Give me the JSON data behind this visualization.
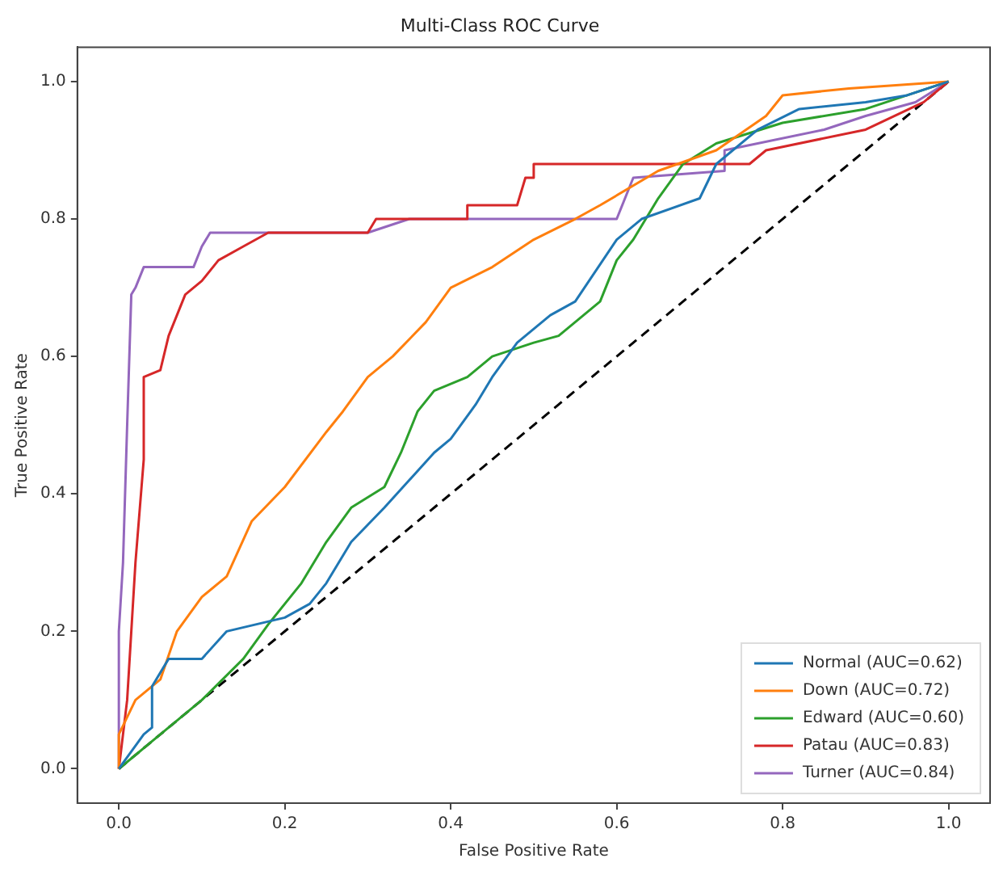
{
  "chart_data": {
    "type": "line",
    "title": "Multi-Class ROC Curve",
    "xlabel": "False Positive Rate",
    "ylabel": "True Positive Rate",
    "xlim": [
      -0.05,
      1.05
    ],
    "ylim": [
      -0.05,
      1.05
    ],
    "xticks": [
      {
        "value": 0,
        "label": "0.0"
      },
      {
        "value": 0.2,
        "label": "0.2"
      },
      {
        "value": 0.4,
        "label": "0.4"
      },
      {
        "value": 0.6,
        "label": "0.6"
      },
      {
        "value": 0.8,
        "label": "0.8"
      },
      {
        "value": 1,
        "label": "1.0"
      }
    ],
    "yticks": [
      {
        "value": 0,
        "label": "0.0"
      },
      {
        "value": 0.2,
        "label": "0.2"
      },
      {
        "value": 0.4,
        "label": "0.4"
      },
      {
        "value": 0.6,
        "label": "0.6"
      },
      {
        "value": 0.8,
        "label": "0.8"
      },
      {
        "value": 1,
        "label": "1.0"
      }
    ],
    "grid": false,
    "legend": "bottom right",
    "marker": "none",
    "line_style": "solid",
    "series": [
      {
        "name": "Normal (AUC=0.62)",
        "color": "#1f77b4",
        "x": [
          0,
          0.03,
          0.04,
          0.04,
          0.06,
          0.1,
          0.13,
          0.2,
          0.23,
          0.25,
          0.28,
          0.32,
          0.35,
          0.38,
          0.4,
          0.43,
          0.45,
          0.48,
          0.52,
          0.55,
          0.6,
          0.63,
          0.7,
          0.72,
          0.77,
          0.82,
          0.9,
          0.95,
          1
        ],
        "values": [
          0,
          0.05,
          0.06,
          0.12,
          0.16,
          0.16,
          0.2,
          0.22,
          0.24,
          0.27,
          0.33,
          0.38,
          0.42,
          0.46,
          0.48,
          0.53,
          0.57,
          0.62,
          0.66,
          0.68,
          0.77,
          0.8,
          0.83,
          0.88,
          0.93,
          0.96,
          0.97,
          0.98,
          1
        ]
      },
      {
        "name": "Down (AUC=0.72)",
        "color": "#ff7f0e",
        "x": [
          0,
          0,
          0.02,
          0.05,
          0.07,
          0.1,
          0.13,
          0.16,
          0.2,
          0.25,
          0.27,
          0.3,
          0.33,
          0.37,
          0.4,
          0.45,
          0.5,
          0.55,
          0.58,
          0.65,
          0.72,
          0.78,
          0.8,
          0.88,
          1
        ],
        "values": [
          0,
          0.05,
          0.1,
          0.13,
          0.2,
          0.25,
          0.28,
          0.36,
          0.41,
          0.49,
          0.52,
          0.57,
          0.6,
          0.65,
          0.7,
          0.73,
          0.77,
          0.8,
          0.82,
          0.87,
          0.9,
          0.95,
          0.98,
          0.99,
          1
        ]
      },
      {
        "name": "Edward (AUC=0.60)",
        "color": "#2ca02c",
        "x": [
          0,
          0.05,
          0.1,
          0.15,
          0.18,
          0.22,
          0.25,
          0.28,
          0.32,
          0.34,
          0.36,
          0.38,
          0.42,
          0.45,
          0.5,
          0.53,
          0.56,
          0.58,
          0.6,
          0.62,
          0.65,
          0.68,
          0.72,
          0.8,
          0.9,
          1
        ],
        "values": [
          0,
          0.05,
          0.1,
          0.16,
          0.21,
          0.27,
          0.33,
          0.38,
          0.41,
          0.46,
          0.52,
          0.55,
          0.57,
          0.6,
          0.62,
          0.63,
          0.66,
          0.68,
          0.74,
          0.77,
          0.83,
          0.88,
          0.91,
          0.94,
          0.96,
          1
        ]
      },
      {
        "name": "Patau (AUC=0.83)",
        "color": "#d62728",
        "x": [
          0,
          0.01,
          0.02,
          0.03,
          0.03,
          0.05,
          0.06,
          0.07,
          0.08,
          0.1,
          0.12,
          0.15,
          0.18,
          0.3,
          0.31,
          0.42,
          0.42,
          0.48,
          0.49,
          0.5,
          0.5,
          0.76,
          0.78,
          0.9,
          0.97,
          1
        ],
        "values": [
          0,
          0.1,
          0.3,
          0.45,
          0.57,
          0.58,
          0.63,
          0.66,
          0.69,
          0.71,
          0.74,
          0.76,
          0.78,
          0.78,
          0.8,
          0.8,
          0.82,
          0.82,
          0.86,
          0.86,
          0.88,
          0.88,
          0.9,
          0.93,
          0.97,
          1
        ]
      },
      {
        "name": "Turner (AUC=0.84)",
        "color": "#9467bd",
        "x": [
          0,
          0,
          0.005,
          0.01,
          0.015,
          0.02,
          0.03,
          0.09,
          0.1,
          0.11,
          0.3,
          0.35,
          0.6,
          0.62,
          0.73,
          0.73,
          0.85,
          0.9,
          0.96,
          1
        ],
        "values": [
          0,
          0.2,
          0.3,
          0.5,
          0.69,
          0.7,
          0.73,
          0.73,
          0.76,
          0.78,
          0.78,
          0.8,
          0.8,
          0.86,
          0.87,
          0.9,
          0.93,
          0.95,
          0.97,
          1
        ]
      },
      {
        "color": "#000000",
        "line_style": "dashed",
        "x": [
          0,
          1
        ],
        "values": [
          0,
          1
        ]
      }
    ]
  }
}
